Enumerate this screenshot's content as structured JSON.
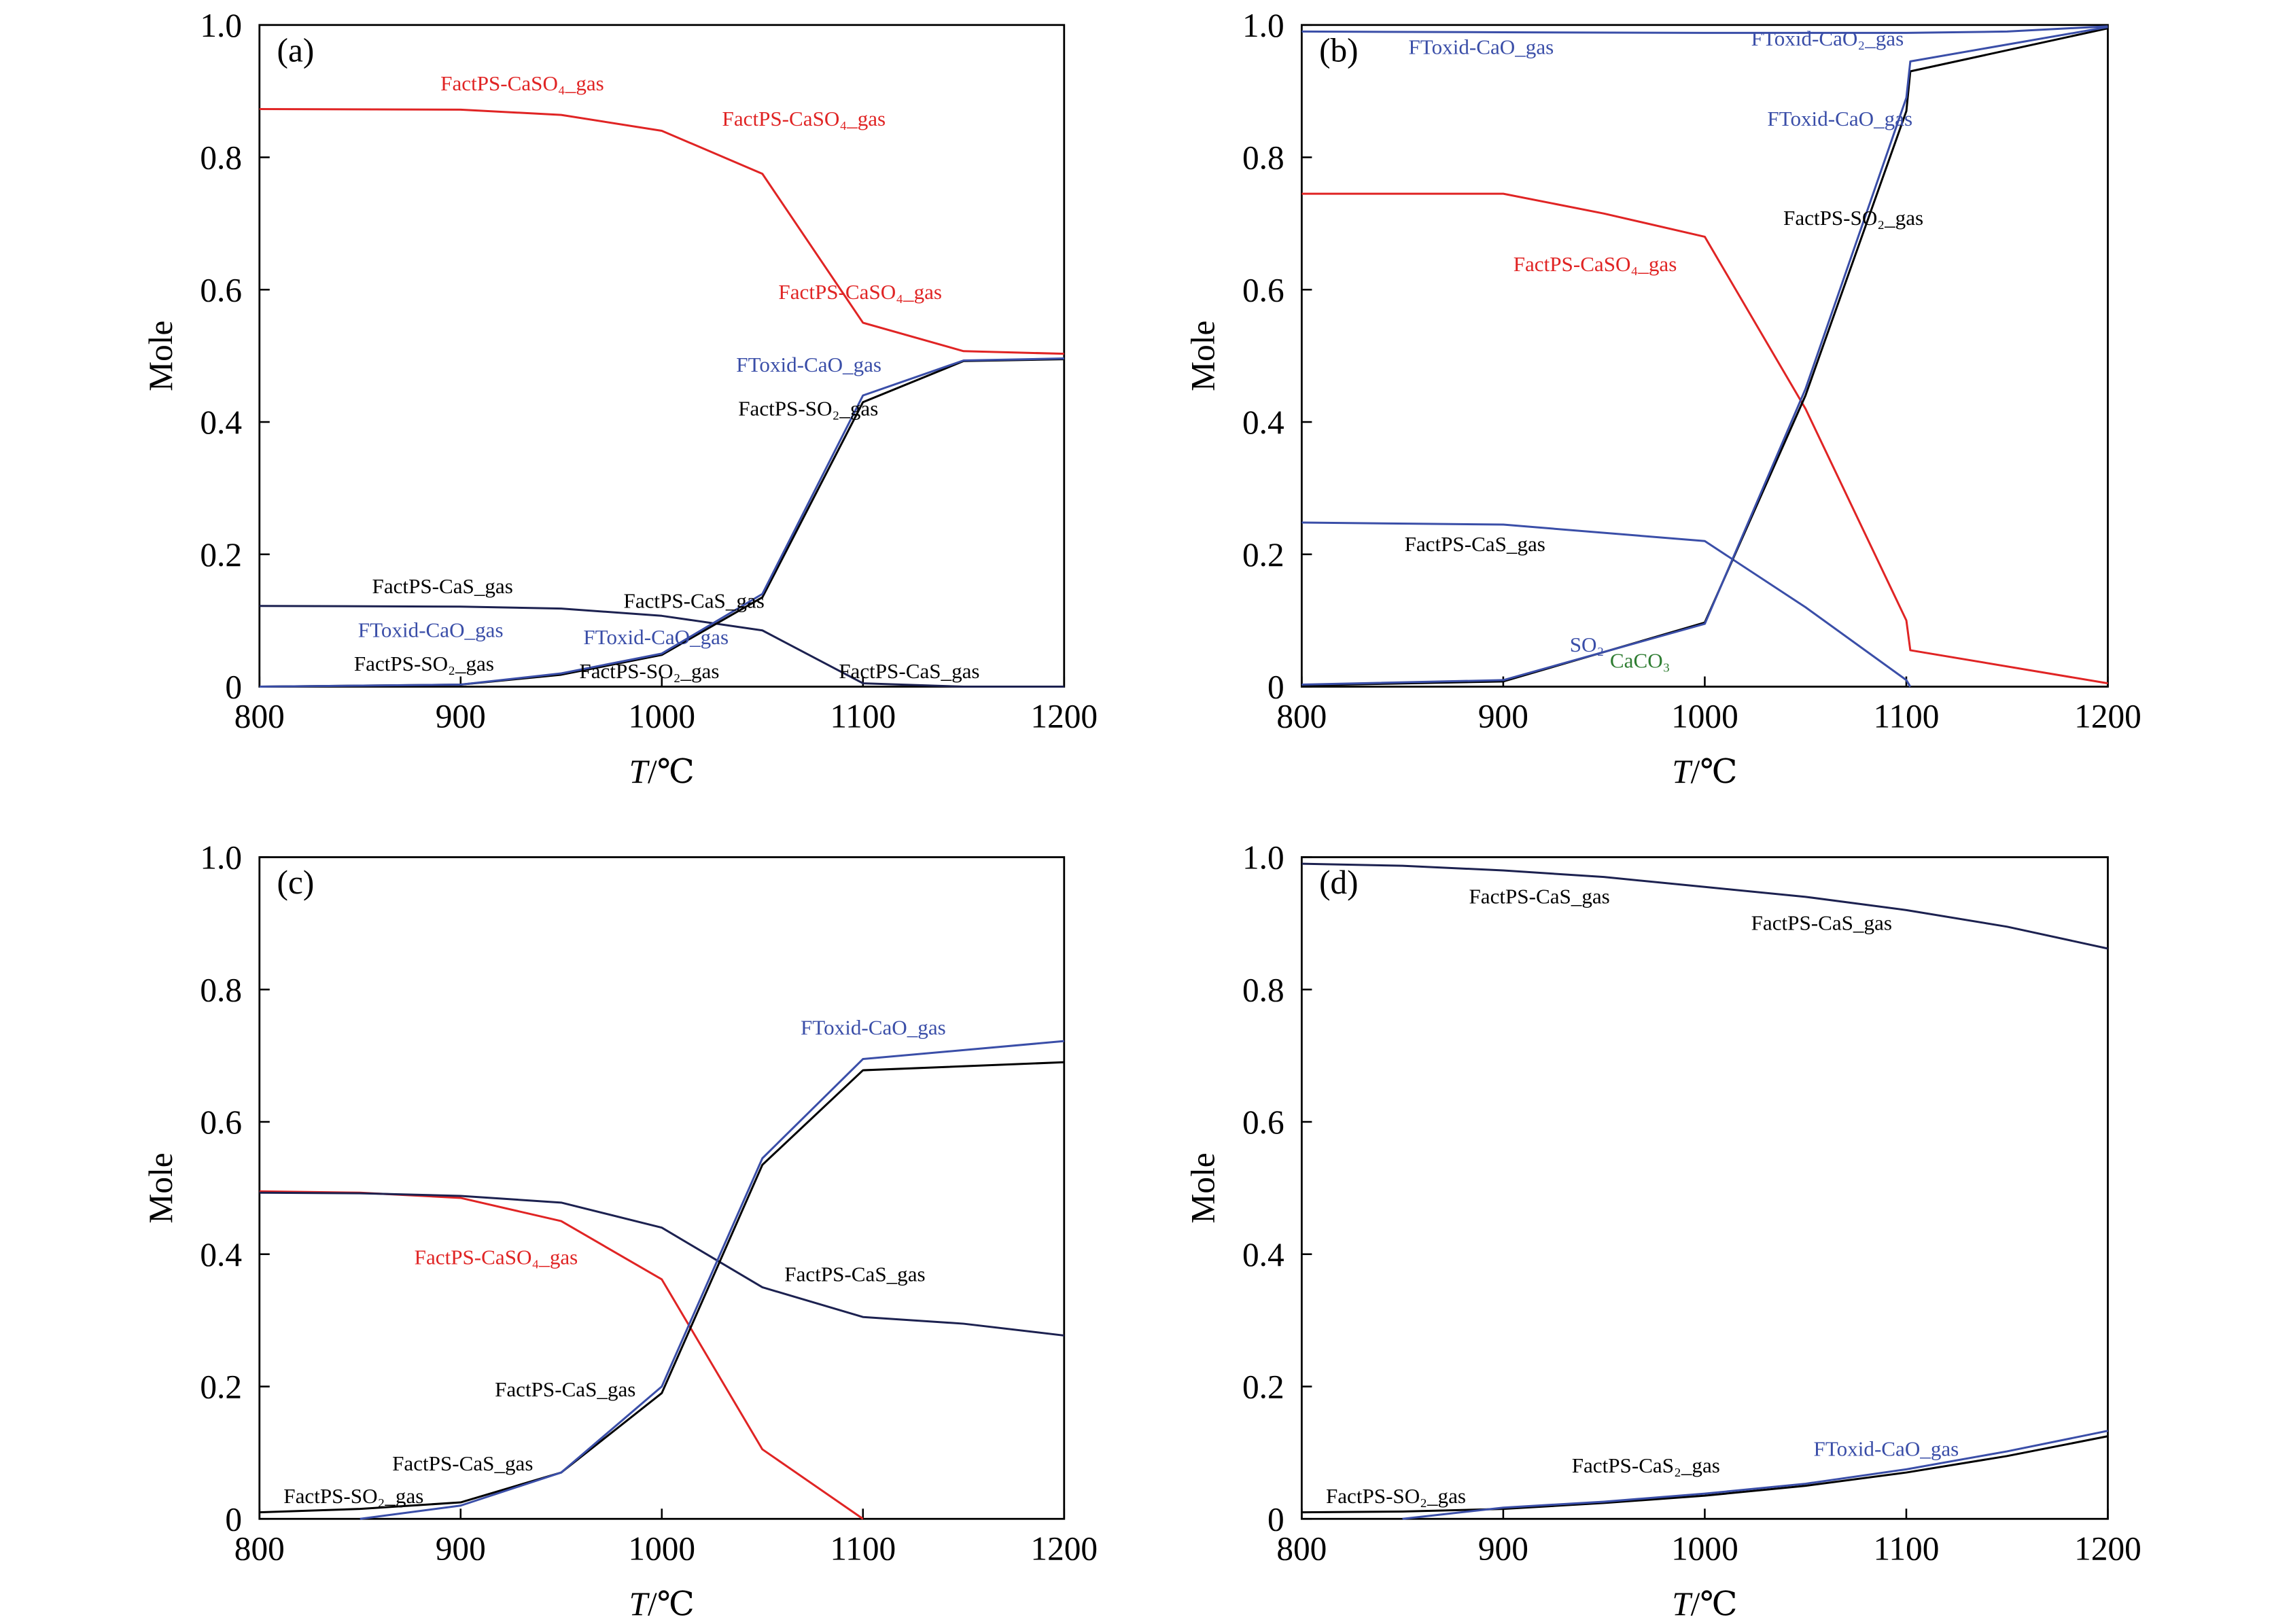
{
  "colors": {
    "red": "#e02424",
    "blue": "#3a4ea8",
    "black": "#000000",
    "navy": "#1c2150",
    "green": "#2f7d32"
  },
  "chart_data": [
    {
      "type": "line",
      "panel": "(a)",
      "xlabel_italic": "T",
      "xlabel_unit": "/℃",
      "ylabel": "Mole",
      "xlim": [
        800,
        1200
      ],
      "ylim": [
        0,
        1.0
      ],
      "xticks": [
        "800",
        "900",
        "1000",
        "1100",
        "1200"
      ],
      "yticks": [
        "0",
        "0.2",
        "0.4",
        "0.6",
        "0.8",
        "1.0"
      ],
      "series": [
        {
          "color": "red",
          "x": [
            800,
            900,
            950,
            1000,
            1050,
            1100,
            1150,
            1200
          ],
          "y": [
            0.873,
            0.872,
            0.864,
            0.84,
            0.775,
            0.55,
            0.507,
            0.503
          ]
        },
        {
          "color": "navy",
          "x": [
            800,
            900,
            950,
            1000,
            1050,
            1100,
            1150,
            1200
          ],
          "y": [
            0.122,
            0.121,
            0.118,
            0.107,
            0.085,
            0.005,
            0.0,
            0.0
          ]
        },
        {
          "color": "black",
          "x": [
            800,
            900,
            950,
            1000,
            1050,
            1100,
            1150,
            1200
          ],
          "y": [
            0.0,
            0.003,
            0.018,
            0.048,
            0.135,
            0.43,
            0.492,
            0.495
          ]
        },
        {
          "color": "blue",
          "x": [
            800,
            900,
            950,
            1000,
            1050,
            1100,
            1150,
            1200
          ],
          "y": [
            0.0,
            0.003,
            0.02,
            0.05,
            0.14,
            0.44,
            0.493,
            0.496
          ]
        }
      ],
      "annotations": [
        {
          "text": "FactPS-CaSO₄_gas",
          "color": "red",
          "x": 890,
          "y": 0.901
        },
        {
          "text": "FactPS-CaSO₄_gas",
          "color": "red",
          "x": 1030,
          "y": 0.848
        },
        {
          "text": "FactPS-CaSO₄_gas",
          "color": "red",
          "x": 1058,
          "y": 0.586
        },
        {
          "text": "FToxid-CaO_gas",
          "color": "blue",
          "x": 1037,
          "y": 0.476
        },
        {
          "text": "FactPS-SO₂_gas",
          "color": "black",
          "x": 1038,
          "y": 0.41
        },
        {
          "text": "FactPS-CaS_gas",
          "color": "black",
          "x": 856,
          "y": 0.141
        },
        {
          "text": "FactPS-CaS_gas",
          "color": "black",
          "x": 981,
          "y": 0.119
        },
        {
          "text": "FToxid-CaO_gas",
          "color": "blue",
          "x": 849,
          "y": 0.075
        },
        {
          "text": "FToxid-CaO_gas",
          "color": "blue",
          "x": 961,
          "y": 0.064
        },
        {
          "text": "FactPS-SO₂_gas",
          "color": "black",
          "x": 847,
          "y": 0.024
        },
        {
          "text": "FactPS-SO₂_gas",
          "color": "black",
          "x": 959,
          "y": 0.013
        },
        {
          "text": "FactPS-CaS_gas",
          "color": "black",
          "x": 1088,
          "y": 0.013
        }
      ]
    },
    {
      "type": "line",
      "panel": "(b)",
      "xlabel_italic": "T",
      "xlabel_unit": "/℃",
      "ylabel": "Mole",
      "xlim": [
        800,
        1200
      ],
      "ylim": [
        0,
        1.0
      ],
      "xticks": [
        "800",
        "900",
        "1000",
        "1100",
        "1200"
      ],
      "yticks": [
        "0",
        "0.2",
        "0.4",
        "0.6",
        "0.8",
        "1.0"
      ],
      "series": [
        {
          "color": "blue",
          "x": [
            800,
            900,
            1000,
            1100,
            1150,
            1200
          ],
          "y": [
            0.99,
            0.989,
            0.988,
            0.988,
            0.99,
            0.998
          ]
        },
        {
          "color": "red",
          "x": [
            800,
            900,
            950,
            1000,
            1050,
            1100,
            1102,
            1200
          ],
          "y": [
            0.745,
            0.745,
            0.715,
            0.68,
            0.42,
            0.1,
            0.055,
            0.005
          ]
        },
        {
          "color": "blue",
          "x": [
            800,
            900,
            1000,
            1050,
            1100,
            1102
          ],
          "y": [
            0.248,
            0.245,
            0.22,
            0.12,
            0.01,
            0.0
          ]
        },
        {
          "color": "black",
          "x": [
            800,
            900,
            1000,
            1050,
            1100,
            1102,
            1200
          ],
          "y": [
            0.002,
            0.008,
            0.097,
            0.44,
            0.87,
            0.93,
            0.995
          ]
        },
        {
          "color": "blue",
          "x": [
            800,
            900,
            1000,
            1050,
            1100,
            1102,
            1200
          ],
          "y": [
            0.003,
            0.01,
            0.095,
            0.45,
            0.89,
            0.945,
            0.997
          ]
        }
      ],
      "annotations": [
        {
          "text": "FToxid-CaO_gas",
          "color": "blue",
          "x": 853,
          "y": 0.956
        },
        {
          "text": "FToxid-CaO₂_gas",
          "color": "blue",
          "x": 1023,
          "y": 0.969
        },
        {
          "text": "FToxid-CaO_gas",
          "color": "blue",
          "x": 1031,
          "y": 0.848
        },
        {
          "text": "FactPS-SO₂_gas",
          "color": "black",
          "x": 1039,
          "y": 0.698
        },
        {
          "text": "FactPS-CaSO₄_gas",
          "color": "red",
          "x": 905,
          "y": 0.628
        },
        {
          "text": "FactPS-CaS_gas",
          "color": "black",
          "x": 851,
          "y": 0.205
        },
        {
          "text": "SO₂",
          "color": "blue",
          "x": 933,
          "y": 0.053
        },
        {
          "text": "CaCO₃",
          "color": "green",
          "x": 927,
          "y": 0.029
        }
      ]
    },
    {
      "type": "line",
      "panel": "(c)",
      "xlabel_italic": "T",
      "xlabel_unit": "/℃",
      "ylabel": "Mole",
      "xlim": [
        800,
        1200
      ],
      "ylim": [
        0,
        1.0
      ],
      "xticks": [
        "800",
        "900",
        "1000",
        "1100",
        "1200"
      ],
      "yticks": [
        "0",
        "0.2",
        "0.4",
        "0.6",
        "0.8",
        "1.0"
      ],
      "series": [
        {
          "color": "red",
          "x": [
            800,
            850,
            900,
            950,
            1000,
            1050,
            1100
          ],
          "y": [
            0.495,
            0.493,
            0.485,
            0.45,
            0.362,
            0.105,
            0.0
          ]
        },
        {
          "color": "navy",
          "x": [
            800,
            850,
            900,
            950,
            1000,
            1050,
            1100,
            1150,
            1200
          ],
          "y": [
            0.493,
            0.492,
            0.488,
            0.478,
            0.44,
            0.35,
            0.305,
            0.295,
            0.277
          ]
        },
        {
          "color": "black",
          "x": [
            800,
            850,
            900,
            950,
            1000,
            1050,
            1100,
            1200
          ],
          "y": [
            0.01,
            0.015,
            0.025,
            0.07,
            0.19,
            0.535,
            0.678,
            0.69
          ]
        },
        {
          "color": "blue",
          "x": [
            850,
            900,
            950,
            1000,
            1050,
            1100,
            1200
          ],
          "y": [
            0.0,
            0.02,
            0.07,
            0.2,
            0.545,
            0.695,
            0.722
          ]
        }
      ],
      "annotations": [
        {
          "text": "FToxid-CaO_gas",
          "color": "blue",
          "x": 1069,
          "y": 0.732
        },
        {
          "text": "FactPS-CaSO₄_gas",
          "color": "red",
          "x": 877,
          "y": 0.385
        },
        {
          "text": "FactPS-CaS_gas",
          "color": "black",
          "x": 1061,
          "y": 0.359
        },
        {
          "text": "FactPS-CaS_gas",
          "color": "black",
          "x": 917,
          "y": 0.185
        },
        {
          "text": "FactPS-CaS_gas",
          "color": "black",
          "x": 866,
          "y": 0.073
        },
        {
          "text": "FactPS-SO₂_gas",
          "color": "black",
          "x": 812,
          "y": 0.024
        }
      ]
    },
    {
      "type": "line",
      "panel": "(d)",
      "xlabel_italic": "T",
      "xlabel_unit": "/℃",
      "ylabel": "Mole",
      "xlim": [
        800,
        1200
      ],
      "ylim": [
        0,
        1.0
      ],
      "xticks": [
        "800",
        "900",
        "1000",
        "1100",
        "1200"
      ],
      "yticks": [
        "0",
        "0.2",
        "0.4",
        "0.6",
        "0.8",
        "1.0"
      ],
      "series": [
        {
          "color": "navy",
          "x": [
            800,
            850,
            900,
            950,
            1000,
            1050,
            1100,
            1150,
            1200
          ],
          "y": [
            0.99,
            0.987,
            0.98,
            0.97,
            0.955,
            0.94,
            0.92,
            0.895,
            0.862
          ]
        },
        {
          "color": "black",
          "x": [
            800,
            850,
            900,
            950,
            1000,
            1050,
            1100,
            1150,
            1200
          ],
          "y": [
            0.01,
            0.011,
            0.015,
            0.024,
            0.035,
            0.05,
            0.07,
            0.095,
            0.125
          ]
        },
        {
          "color": "blue",
          "x": [
            850,
            900,
            950,
            1000,
            1050,
            1100,
            1150,
            1200
          ],
          "y": [
            0.0,
            0.017,
            0.026,
            0.038,
            0.053,
            0.075,
            0.102,
            0.133
          ]
        }
      ],
      "annotations": [
        {
          "text": "FactPS-CaS_gas",
          "color": "black",
          "x": 883,
          "y": 0.93
        },
        {
          "text": "FactPS-CaS_gas",
          "color": "black",
          "x": 1023,
          "y": 0.89
        },
        {
          "text": "FactPS-CaS₂_gas",
          "color": "black",
          "x": 934,
          "y": 0.07
        },
        {
          "text": "FToxid-CaO_gas",
          "color": "blue",
          "x": 1054,
          "y": 0.095
        },
        {
          "text": "FactPS-SO₂_gas",
          "color": "black",
          "x": 812,
          "y": 0.024
        }
      ]
    }
  ]
}
